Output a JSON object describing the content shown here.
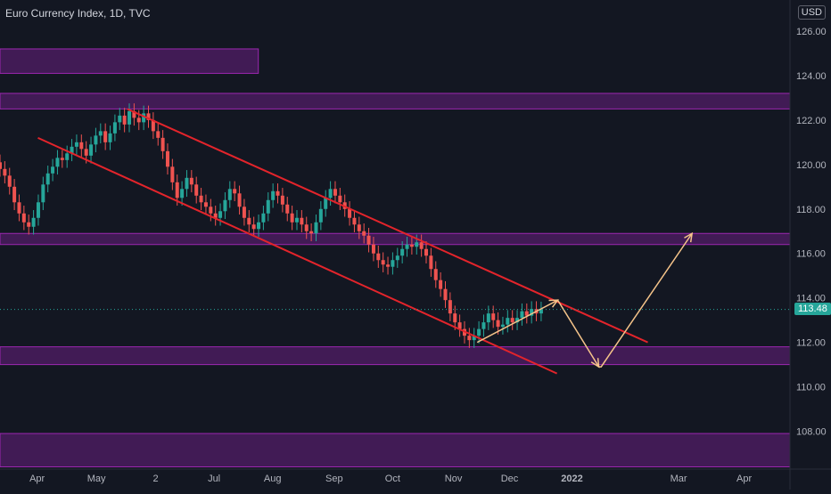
{
  "header": {
    "title": "Euro Currency Index, 1D, TVC",
    "currency": "USD"
  },
  "last_price": "113.48",
  "colors": {
    "background": "#131722",
    "axis_text": "#b2b5be",
    "up": "#26a69a",
    "down": "#ef5350",
    "channel": "#e3242b",
    "zone_fill": "#4a1c5e",
    "zone_border": "#9c27b0",
    "projection": "#f5c48a"
  },
  "chart_data": {
    "type": "candlestick",
    "title": "Euro Currency Index, 1D, TVC",
    "ylim": [
      106.3,
      127.4
    ],
    "y_ticks": [
      "126.00",
      "124.00",
      "122.00",
      "120.00",
      "118.00",
      "116.00",
      "114.00",
      "112.00",
      "110.00",
      "108.00"
    ],
    "x_labels": [
      "Apr",
      "May",
      "2",
      "Jul",
      "Aug",
      "Sep",
      "Oct",
      "Nov",
      "Dec",
      "2022",
      "Mar",
      "Apr"
    ],
    "last_price": 113.48,
    "zones": [
      {
        "from": 124.1,
        "to": 125.2
      },
      {
        "from": 122.5,
        "to": 123.2
      },
      {
        "from": 116.4,
        "to": 116.9
      },
      {
        "from": 111.0,
        "to": 111.8
      },
      {
        "from": 106.4,
        "to": 107.9
      }
    ],
    "channel_lines": [
      {
        "x": [
          0.161,
          0.82
        ],
        "y": [
          122.5,
          112.0
        ]
      },
      {
        "x": [
          0.048,
          0.705
        ],
        "y": [
          121.2,
          110.6
        ]
      }
    ],
    "projection_path": {
      "x": [
        0.604,
        0.706,
        0.758,
        0.761,
        0.876
      ],
      "y": [
        112.0,
        113.9,
        110.9,
        110.9,
        116.9
      ]
    },
    "series": [
      {
        "name": "price",
        "x_range": [
          0.0,
          0.685
        ],
        "close": [
          119.8,
          119.5,
          119.0,
          118.3,
          117.8,
          117.4,
          117.2,
          117.6,
          118.3,
          119.1,
          119.6,
          119.9,
          120.3,
          120.2,
          120.5,
          120.8,
          121.0,
          120.7,
          120.4,
          120.9,
          121.3,
          121.5,
          121.0,
          121.4,
          121.9,
          122.2,
          121.8,
          122.4,
          122.1,
          121.9,
          122.3,
          122.0,
          121.5,
          121.2,
          120.6,
          119.9,
          119.2,
          118.5,
          118.9,
          119.4,
          119.1,
          118.6,
          118.3,
          118.1,
          117.8,
          117.6,
          117.9,
          118.4,
          118.9,
          118.7,
          118.1,
          117.6,
          117.3,
          117.1,
          117.4,
          117.8,
          118.4,
          118.8,
          118.6,
          118.2,
          117.8,
          117.4,
          117.6,
          117.3,
          117.0,
          116.9,
          117.4,
          118.0,
          118.5,
          118.9,
          118.6,
          118.3,
          118.0,
          117.6,
          117.3,
          117.0,
          116.8,
          116.4,
          116.0,
          115.7,
          115.5,
          115.4,
          115.7,
          115.9,
          116.2,
          116.4,
          116.3,
          116.5,
          116.2,
          115.9,
          115.3,
          114.8,
          114.4,
          113.9,
          113.3,
          112.9,
          112.6,
          112.3,
          112.1,
          112.3,
          112.6,
          112.9,
          113.3,
          113.0,
          112.7,
          112.8,
          113.1,
          112.9,
          113.1,
          113.4,
          113.2,
          113.5,
          113.3,
          113.48
        ]
      }
    ]
  }
}
